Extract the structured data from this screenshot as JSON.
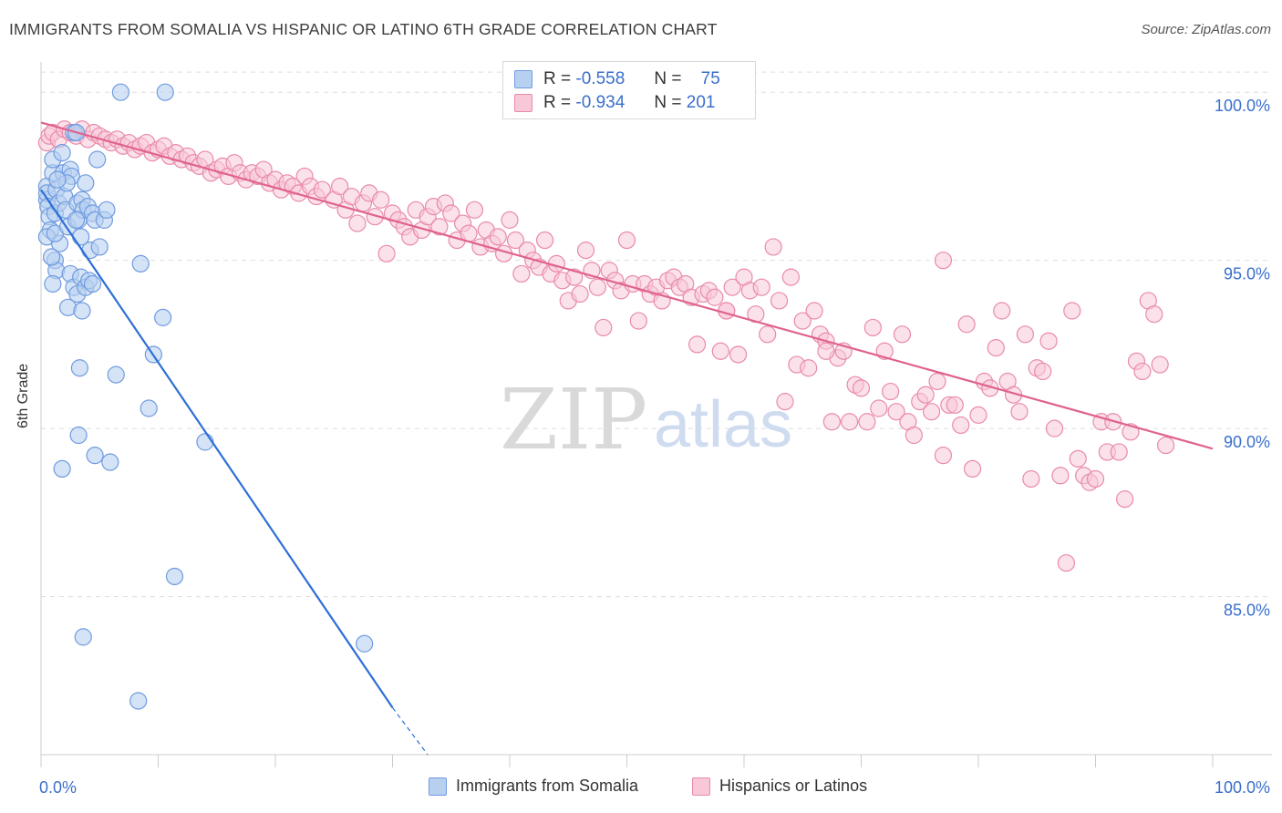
{
  "title": "IMMIGRANTS FROM SOMALIA VS HISPANIC OR LATINO 6TH GRADE CORRELATION CHART",
  "source": "Source: ZipAtlas.com",
  "watermark": {
    "zip": "ZIP",
    "atlas": "atlas"
  },
  "colors": {
    "blue_fill": "#b8d0f0",
    "blue_stroke": "#6f9be0",
    "blue_line": "#2e6fd6",
    "pink_fill": "#f8c8d8",
    "pink_stroke": "#e98aaa",
    "pink_line": "#e0628e",
    "axis_text": "#3a6fcc",
    "grid": "#dddddd"
  },
  "legend": {
    "rows": [
      {
        "r_label": "R =",
        "r_value": "-0.558",
        "n_label": "N =",
        "n_value": "75"
      },
      {
        "r_label": "R =",
        "r_value": "-0.934",
        "n_label": "N =",
        "n_value": "201"
      }
    ]
  },
  "chart_data": {
    "type": "scatter",
    "title": "IMMIGRANTS FROM SOMALIA VS HISPANIC OR LATINO 6TH GRADE CORRELATION CHART",
    "xlabel": "",
    "ylabel": "6th Grade",
    "xlim": [
      0,
      100
    ],
    "ylim": [
      80.3,
      100.9
    ],
    "x_tick_labels": [
      "0.0%",
      "100.0%"
    ],
    "y_ticks": [
      100,
      95,
      90,
      85
    ],
    "y_tick_labels": [
      "100.0%",
      "95.0%",
      "90.0%",
      "85.0%"
    ],
    "grid": true,
    "legend_position": "top-center",
    "series": [
      {
        "name": "Immigrants from Somalia",
        "color": "#6f9be0",
        "trend": {
          "x": [
            0,
            30
          ],
          "y": [
            97.1,
            81.7
          ],
          "dashed_to": [
            33.0,
            80.3
          ]
        },
        "points": [
          [
            6.8,
            100.0
          ],
          [
            10.6,
            100.0
          ],
          [
            0.5,
            97.2
          ],
          [
            0.5,
            96.8
          ],
          [
            0.5,
            97.0
          ],
          [
            0.6,
            96.6
          ],
          [
            0.7,
            96.3
          ],
          [
            0.8,
            95.9
          ],
          [
            0.5,
            95.7
          ],
          [
            1.0,
            97.6
          ],
          [
            1.0,
            98.0
          ],
          [
            1.2,
            96.4
          ],
          [
            1.3,
            97.1
          ],
          [
            1.5,
            96.7
          ],
          [
            1.6,
            95.5
          ],
          [
            1.2,
            95.8
          ],
          [
            1.8,
            98.2
          ],
          [
            1.9,
            97.6
          ],
          [
            2.0,
            96.9
          ],
          [
            2.1,
            96.5
          ],
          [
            2.3,
            96.0
          ],
          [
            2.5,
            97.7
          ],
          [
            2.6,
            97.5
          ],
          [
            2.8,
            98.8
          ],
          [
            3.0,
            98.8
          ],
          [
            3.1,
            96.7
          ],
          [
            3.2,
            96.2
          ],
          [
            3.4,
            95.7
          ],
          [
            3.5,
            96.8
          ],
          [
            3.6,
            96.5
          ],
          [
            3.8,
            97.3
          ],
          [
            4.0,
            96.6
          ],
          [
            4.2,
            95.3
          ],
          [
            4.4,
            96.4
          ],
          [
            4.6,
            96.2
          ],
          [
            4.8,
            98.0
          ],
          [
            5.0,
            95.4
          ],
          [
            5.4,
            96.2
          ],
          [
            5.6,
            96.5
          ],
          [
            3.0,
            96.2
          ],
          [
            2.2,
            97.3
          ],
          [
            1.4,
            97.4
          ],
          [
            1.2,
            95.0
          ],
          [
            1.3,
            94.7
          ],
          [
            2.5,
            94.6
          ],
          [
            2.8,
            94.2
          ],
          [
            3.1,
            94.0
          ],
          [
            3.4,
            94.5
          ],
          [
            3.8,
            94.2
          ],
          [
            4.1,
            94.4
          ],
          [
            4.4,
            94.3
          ],
          [
            0.9,
            95.1
          ],
          [
            1.0,
            94.3
          ],
          [
            2.3,
            93.6
          ],
          [
            3.5,
            93.5
          ],
          [
            8.5,
            94.9
          ],
          [
            3.3,
            91.8
          ],
          [
            6.4,
            91.6
          ],
          [
            10.4,
            93.3
          ],
          [
            9.6,
            92.2
          ],
          [
            9.2,
            90.6
          ],
          [
            3.2,
            89.8
          ],
          [
            1.8,
            88.8
          ],
          [
            4.6,
            89.2
          ],
          [
            5.9,
            89.0
          ],
          [
            14.0,
            89.6
          ],
          [
            11.4,
            85.6
          ],
          [
            3.6,
            83.8
          ],
          [
            27.6,
            83.6
          ],
          [
            8.3,
            81.9
          ]
        ]
      },
      {
        "name": "Hispanics or Latinos",
        "color": "#e98aaa",
        "trend": {
          "x": [
            0,
            100
          ],
          "y": [
            99.1,
            89.4
          ]
        },
        "points": [
          [
            0.5,
            98.5
          ],
          [
            0.7,
            98.7
          ],
          [
            1.0,
            98.8
          ],
          [
            1.5,
            98.6
          ],
          [
            2.0,
            98.9
          ],
          [
            2.5,
            98.8
          ],
          [
            3.0,
            98.7
          ],
          [
            3.5,
            98.9
          ],
          [
            4.0,
            98.6
          ],
          [
            4.5,
            98.8
          ],
          [
            5.0,
            98.7
          ],
          [
            5.5,
            98.6
          ],
          [
            6.0,
            98.5
          ],
          [
            6.5,
            98.6
          ],
          [
            7.0,
            98.4
          ],
          [
            7.5,
            98.5
          ],
          [
            8.0,
            98.3
          ],
          [
            8.5,
            98.4
          ],
          [
            9.0,
            98.5
          ],
          [
            9.5,
            98.2
          ],
          [
            10.0,
            98.3
          ],
          [
            10.5,
            98.4
          ],
          [
            11.0,
            98.1
          ],
          [
            11.5,
            98.2
          ],
          [
            12.0,
            98.0
          ],
          [
            12.5,
            98.1
          ],
          [
            13.0,
            97.9
          ],
          [
            13.5,
            97.8
          ],
          [
            14.0,
            98.0
          ],
          [
            14.5,
            97.6
          ],
          [
            15.0,
            97.7
          ],
          [
            15.5,
            97.8
          ],
          [
            16.0,
            97.5
          ],
          [
            16.5,
            97.9
          ],
          [
            17.0,
            97.6
          ],
          [
            17.5,
            97.4
          ],
          [
            18.0,
            97.6
          ],
          [
            18.5,
            97.5
          ],
          [
            19.0,
            97.7
          ],
          [
            19.5,
            97.3
          ],
          [
            20.0,
            97.4
          ],
          [
            20.5,
            97.1
          ],
          [
            21.0,
            97.3
          ],
          [
            21.5,
            97.2
          ],
          [
            22.0,
            97.0
          ],
          [
            22.5,
            97.5
          ],
          [
            23.0,
            97.2
          ],
          [
            23.5,
            96.9
          ],
          [
            24.0,
            97.1
          ],
          [
            25.0,
            96.8
          ],
          [
            25.5,
            97.2
          ],
          [
            26.0,
            96.5
          ],
          [
            26.5,
            96.9
          ],
          [
            27.0,
            96.1
          ],
          [
            27.5,
            96.7
          ],
          [
            28.0,
            97.0
          ],
          [
            28.5,
            96.3
          ],
          [
            29.0,
            96.8
          ],
          [
            29.5,
            95.2
          ],
          [
            30.0,
            96.4
          ],
          [
            30.5,
            96.2
          ],
          [
            31.0,
            96.0
          ],
          [
            31.5,
            95.7
          ],
          [
            32.0,
            96.5
          ],
          [
            32.5,
            95.9
          ],
          [
            33.0,
            96.3
          ],
          [
            33.5,
            96.6
          ],
          [
            34.0,
            96.0
          ],
          [
            34.5,
            96.7
          ],
          [
            35.0,
            96.4
          ],
          [
            35.5,
            95.6
          ],
          [
            36.0,
            96.1
          ],
          [
            36.5,
            95.8
          ],
          [
            37.0,
            96.5
          ],
          [
            37.5,
            95.4
          ],
          [
            38.0,
            95.9
          ],
          [
            38.5,
            95.5
          ],
          [
            39.0,
            95.7
          ],
          [
            39.5,
            95.2
          ],
          [
            40.0,
            96.2
          ],
          [
            40.5,
            95.6
          ],
          [
            41.0,
            94.6
          ],
          [
            41.5,
            95.3
          ],
          [
            42.0,
            95.0
          ],
          [
            42.5,
            94.8
          ],
          [
            43.0,
            95.6
          ],
          [
            43.5,
            94.6
          ],
          [
            44.0,
            94.9
          ],
          [
            44.5,
            94.4
          ],
          [
            45.0,
            93.8
          ],
          [
            45.5,
            94.5
          ],
          [
            46.0,
            94.0
          ],
          [
            46.5,
            95.3
          ],
          [
            47.0,
            94.7
          ],
          [
            47.5,
            94.2
          ],
          [
            48.0,
            93.0
          ],
          [
            48.5,
            94.7
          ],
          [
            49.0,
            94.4
          ],
          [
            49.5,
            94.1
          ],
          [
            50.0,
            95.6
          ],
          [
            50.5,
            94.3
          ],
          [
            51.0,
            93.2
          ],
          [
            51.5,
            94.3
          ],
          [
            52.0,
            94.0
          ],
          [
            52.5,
            94.2
          ],
          [
            53.0,
            93.8
          ],
          [
            53.5,
            94.4
          ],
          [
            54.0,
            94.5
          ],
          [
            54.5,
            94.2
          ],
          [
            55.0,
            94.3
          ],
          [
            55.5,
            93.9
          ],
          [
            56.0,
            92.5
          ],
          [
            56.5,
            94.0
          ],
          [
            57.0,
            94.1
          ],
          [
            57.5,
            93.9
          ],
          [
            58.0,
            92.3
          ],
          [
            58.5,
            93.5
          ],
          [
            59.0,
            94.2
          ],
          [
            59.5,
            92.2
          ],
          [
            60.0,
            94.5
          ],
          [
            60.5,
            94.1
          ],
          [
            61.0,
            93.4
          ],
          [
            61.5,
            94.2
          ],
          [
            62.0,
            92.8
          ],
          [
            62.5,
            95.4
          ],
          [
            63.0,
            93.8
          ],
          [
            63.5,
            90.8
          ],
          [
            64.0,
            94.5
          ],
          [
            64.5,
            91.9
          ],
          [
            65.0,
            93.2
          ],
          [
            65.5,
            91.8
          ],
          [
            66.0,
            93.5
          ],
          [
            66.5,
            92.8
          ],
          [
            67.0,
            92.6
          ],
          [
            67.5,
            90.2
          ],
          [
            68.0,
            92.1
          ],
          [
            68.5,
            92.3
          ],
          [
            69.0,
            90.2
          ],
          [
            69.5,
            91.3
          ],
          [
            70.0,
            91.2
          ],
          [
            70.5,
            90.2
          ],
          [
            71.0,
            93.0
          ],
          [
            71.5,
            90.6
          ],
          [
            72.0,
            92.3
          ],
          [
            72.5,
            91.1
          ],
          [
            73.0,
            90.5
          ],
          [
            73.5,
            92.8
          ],
          [
            74.0,
            90.2
          ],
          [
            74.5,
            89.8
          ],
          [
            75.0,
            90.8
          ],
          [
            75.5,
            91.0
          ],
          [
            76.0,
            90.5
          ],
          [
            76.5,
            91.4
          ],
          [
            77.0,
            89.2
          ],
          [
            77.5,
            90.7
          ],
          [
            78.0,
            90.7
          ],
          [
            78.5,
            90.1
          ],
          [
            79.0,
            93.1
          ],
          [
            79.5,
            88.8
          ],
          [
            80.0,
            90.4
          ],
          [
            80.5,
            91.4
          ],
          [
            81.0,
            91.2
          ],
          [
            81.5,
            92.4
          ],
          [
            82.0,
            93.5
          ],
          [
            82.5,
            91.4
          ],
          [
            83.0,
            91.0
          ],
          [
            83.5,
            90.5
          ],
          [
            84.0,
            92.8
          ],
          [
            84.5,
            88.5
          ],
          [
            85.0,
            91.8
          ],
          [
            85.5,
            91.7
          ],
          [
            86.0,
            92.6
          ],
          [
            86.5,
            90.0
          ],
          [
            87.0,
            88.6
          ],
          [
            87.5,
            86.0
          ],
          [
            88.0,
            93.5
          ],
          [
            88.5,
            89.1
          ],
          [
            89.0,
            88.6
          ],
          [
            89.5,
            88.4
          ],
          [
            90.0,
            88.5
          ],
          [
            90.5,
            90.2
          ],
          [
            91.0,
            89.3
          ],
          [
            91.5,
            90.2
          ],
          [
            92.0,
            89.3
          ],
          [
            92.5,
            87.9
          ],
          [
            93.0,
            89.9
          ],
          [
            93.5,
            92.0
          ],
          [
            94.0,
            91.7
          ],
          [
            94.5,
            93.8
          ],
          [
            95.0,
            93.4
          ],
          [
            95.5,
            91.9
          ],
          [
            96.0,
            89.5
          ],
          [
            77.0,
            95.0
          ],
          [
            67.0,
            92.3
          ],
          [
            58.5,
            93.5
          ]
        ]
      }
    ]
  },
  "bottom_legend": [
    {
      "label": "Immigrants from Somalia"
    },
    {
      "label": "Hispanics or Latinos"
    }
  ]
}
